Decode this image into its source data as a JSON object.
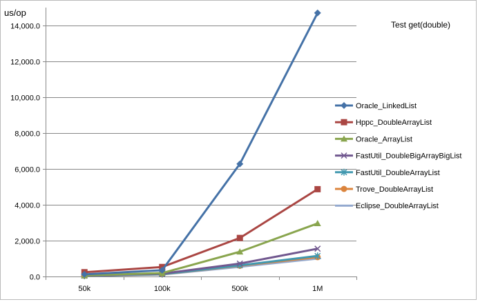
{
  "chart_data": {
    "type": "line",
    "title": "Test get(double)",
    "xlabel": "",
    "ylabel": "us/op",
    "categories": [
      "50k",
      "100k",
      "500k",
      "1M"
    ],
    "ylim": [
      0,
      14000
    ],
    "yticks": [
      0,
      2000,
      4000,
      6000,
      8000,
      10000,
      12000,
      14000
    ],
    "ytick_labels": [
      "0.0",
      "2,000.0",
      "4,000.0",
      "6,000.0",
      "8,000.0",
      "10,000.0",
      "12,000.0",
      "14,000.0"
    ],
    "grid": true,
    "legend_position": "right",
    "series": [
      {
        "name": "Oracle_LinkedList",
        "color": "#4572A7",
        "marker": "diamond",
        "values": [
          120,
          350,
          6280,
          14700
        ]
      },
      {
        "name": "Hppc_DoubleArrayList",
        "color": "#AA4643",
        "marker": "square",
        "values": [
          240,
          530,
          2150,
          4870
        ]
      },
      {
        "name": "Oracle_ArrayList",
        "color": "#89A54E",
        "marker": "triangle",
        "values": [
          60,
          190,
          1380,
          2960
        ]
      },
      {
        "name": "FastUtil_DoubleBigArrayBigList",
        "color": "#71588F",
        "marker": "x",
        "values": [
          50,
          160,
          720,
          1550
        ]
      },
      {
        "name": "FastUtil_DoubleArrayList",
        "color": "#4198AF",
        "marker": "star",
        "values": [
          40,
          130,
          620,
          1150
        ]
      },
      {
        "name": "Trove_DoubleArrayList",
        "color": "#DB843D",
        "marker": "circle",
        "values": [
          40,
          120,
          600,
          1080
        ]
      },
      {
        "name": "Eclipse_DoubleArrayList",
        "color": "#93A9CF",
        "marker": "dash",
        "values": [
          30,
          110,
          540,
          1000
        ]
      }
    ]
  }
}
